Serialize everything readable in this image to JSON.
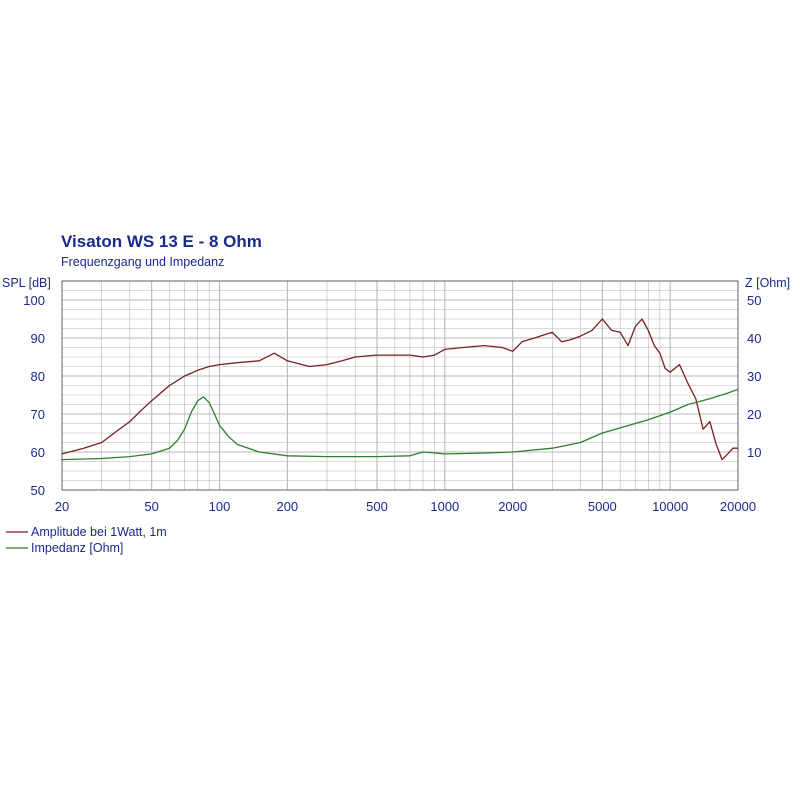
{
  "chart_data": {
    "type": "line",
    "title": "Visaton WS 13 E - 8 Ohm",
    "subtitle": "Frequenzgang und Impedanz",
    "ylabel_left": "SPL [dB]",
    "ylabel_right": "Z [Ohm]",
    "x_scale": "log",
    "xlim": [
      20,
      20000
    ],
    "ylim_left": [
      50,
      105
    ],
    "ylim_right": [
      0,
      55
    ],
    "x_ticks": [
      20,
      50,
      100,
      200,
      500,
      1000,
      2000,
      5000,
      10000,
      20000
    ],
    "x_tick_labels": [
      "20",
      "50",
      "100",
      "200",
      "500",
      "1000",
      "2000",
      "5000",
      "10000",
      "20000"
    ],
    "y_ticks_left": [
      50,
      60,
      70,
      80,
      90,
      100
    ],
    "y_ticks_right": [
      10,
      20,
      30,
      40,
      50
    ],
    "grid": true,
    "legend_position": "bottom-left",
    "colors": {
      "background": "#ffffff",
      "grid": "#b8b8b8",
      "text": "#1a2a8c",
      "amplitude": "#7a1f1f",
      "impedance": "#2f7f2f"
    },
    "series": [
      {
        "name": "Amplitude bei 1Watt, 1m",
        "axis": "left",
        "x": [
          20,
          25,
          30,
          35,
          40,
          45,
          50,
          60,
          70,
          80,
          90,
          100,
          120,
          150,
          175,
          200,
          250,
          300,
          350,
          400,
          500,
          600,
          700,
          800,
          900,
          1000,
          1200,
          1500,
          1800,
          2000,
          2200,
          2500,
          3000,
          3300,
          3600,
          4000,
          4500,
          5000,
          5500,
          6000,
          6500,
          7000,
          7500,
          8000,
          8500,
          9000,
          9500,
          10000,
          11000,
          12000,
          13000,
          13500,
          14000,
          14500,
          15000,
          16000,
          17000,
          18000,
          19000,
          20000
        ],
        "values": [
          59.5,
          61,
          62.5,
          65.5,
          68,
          71,
          73.5,
          77.5,
          80,
          81.5,
          82.5,
          83,
          83.5,
          84,
          86,
          84,
          82.5,
          83,
          84,
          85,
          85.5,
          85.5,
          85.5,
          85,
          85.5,
          87,
          87.5,
          88,
          87.5,
          86.5,
          89,
          90,
          91.5,
          89,
          89.5,
          90.5,
          92,
          95,
          92,
          91.5,
          88,
          93,
          95,
          92,
          88,
          86,
          82,
          81,
          83,
          78,
          74,
          70,
          66,
          67,
          68,
          62,
          58,
          59.5,
          61,
          61
        ]
      },
      {
        "name": "Impedanz [Ohm]",
        "axis": "right",
        "x": [
          20,
          30,
          40,
          50,
          60,
          65,
          70,
          75,
          80,
          85,
          90,
          95,
          100,
          110,
          120,
          150,
          200,
          300,
          500,
          700,
          800,
          1000,
          1500,
          2000,
          3000,
          4000,
          5000,
          7000,
          8000,
          10000,
          12000,
          15000,
          18000,
          20000
        ],
        "values": [
          8,
          8.3,
          8.8,
          9.5,
          11,
          13,
          16,
          20.5,
          23.5,
          24.5,
          23,
          20,
          17,
          14,
          12,
          10,
          9,
          8.8,
          8.8,
          9,
          10,
          9.5,
          9.7,
          10,
          11,
          12.5,
          15,
          17.5,
          18.5,
          20.5,
          22.5,
          24,
          25.5,
          26.5
        ]
      }
    ]
  }
}
